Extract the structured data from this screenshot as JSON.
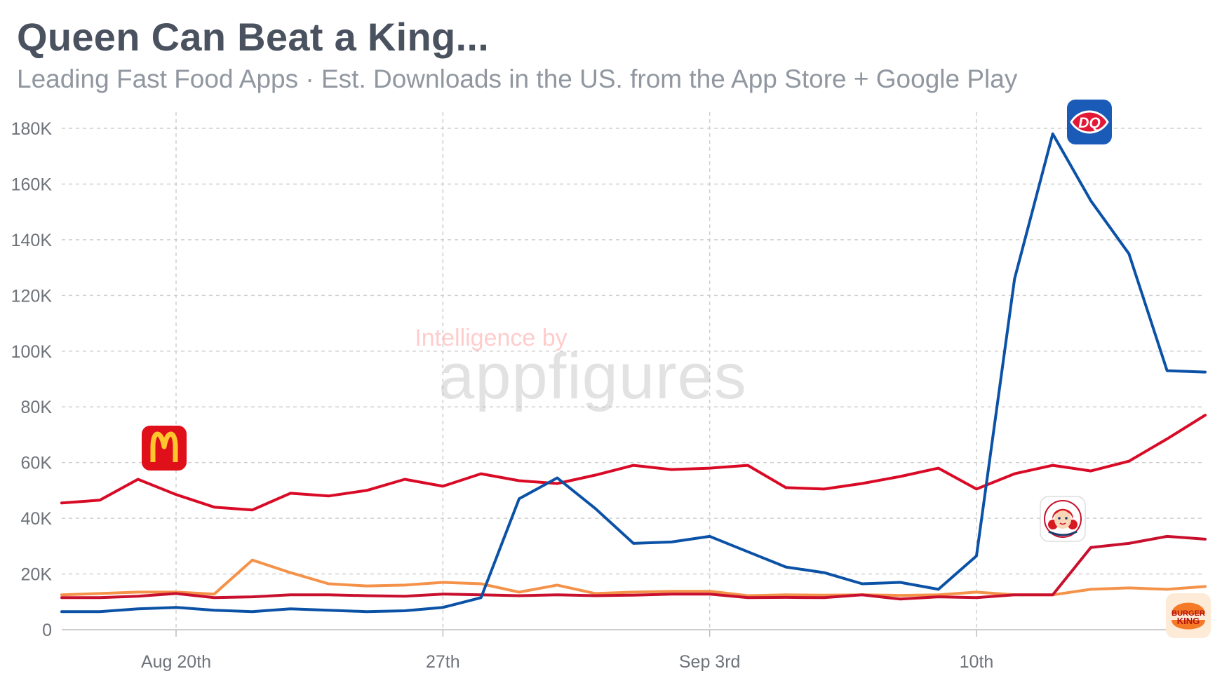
{
  "chart_data": {
    "type": "line",
    "title": "Queen Can Beat a King...",
    "subtitle": "Leading Fast Food Apps · Est. Downloads in the US. from the App Store + Google Play",
    "watermark_small": "Intelligence by",
    "watermark_big": "appfigures",
    "x_ticks": [
      {
        "label": "Aug 20th",
        "index": 3
      },
      {
        "label": "27th",
        "index": 10
      },
      {
        "label": "Sep 3rd",
        "index": 17
      },
      {
        "label": "10th",
        "index": 24
      }
    ],
    "y_ticks": [
      "0",
      "20K",
      "40K",
      "60K",
      "80K",
      "100K",
      "120K",
      "140K",
      "160K",
      "180K"
    ],
    "y_tick_values": [
      0,
      20000,
      40000,
      60000,
      80000,
      100000,
      120000,
      140000,
      160000,
      180000
    ],
    "ylim": [
      0,
      180000
    ],
    "x_count": 31,
    "grid": true,
    "series": [
      {
        "brand": "Burger King",
        "logo": "burger-king-logo",
        "logo_text": [
          "BURGER",
          "KING"
        ],
        "color": "#f5924a",
        "values": [
          12500,
          13000,
          13500,
          13500,
          12800,
          25000,
          20500,
          16500,
          15700,
          16000,
          17000,
          16500,
          13500,
          16000,
          13000,
          13500,
          13800,
          13800,
          12200,
          12500,
          12400,
          12500,
          12300,
          12500,
          13500,
          12500,
          12500,
          14500,
          15000,
          14500,
          15500
        ]
      },
      {
        "brand": "Wendy's",
        "logo": "wendys-logo",
        "color": "#c8102e",
        "values": [
          11500,
          11500,
          12000,
          13000,
          11500,
          11800,
          12500,
          12500,
          12200,
          12000,
          12800,
          12500,
          12200,
          12500,
          12200,
          12400,
          12800,
          12800,
          11500,
          11600,
          11500,
          12500,
          11000,
          11800,
          11500,
          12500,
          12500,
          29500,
          31000,
          33500,
          32500
        ]
      },
      {
        "brand": "McDonald's",
        "logo": "mcdonalds-logo",
        "color": "#d90a25",
        "values": [
          45500,
          46500,
          54000,
          48500,
          44000,
          43000,
          49000,
          48000,
          50000,
          54000,
          51500,
          56000,
          53500,
          52500,
          55500,
          59000,
          57500,
          58000,
          59000,
          51000,
          50500,
          52500,
          55000,
          58000,
          50500,
          56000,
          59000,
          57000,
          60500,
          68500,
          77000
        ]
      },
      {
        "brand": "Dairy Queen",
        "logo": "dairy-queen-logo",
        "logo_text": [
          "DQ"
        ],
        "color": "#0b52a6",
        "values": [
          6500,
          6500,
          7500,
          8000,
          7000,
          6500,
          7500,
          7000,
          6500,
          6800,
          8000,
          11500,
          47000,
          54500,
          43500,
          31000,
          31500,
          33500,
          28000,
          22500,
          20500,
          16500,
          17000,
          14500,
          26500,
          126000,
          178000,
          154000,
          135000,
          93000,
          92500
        ]
      }
    ]
  }
}
